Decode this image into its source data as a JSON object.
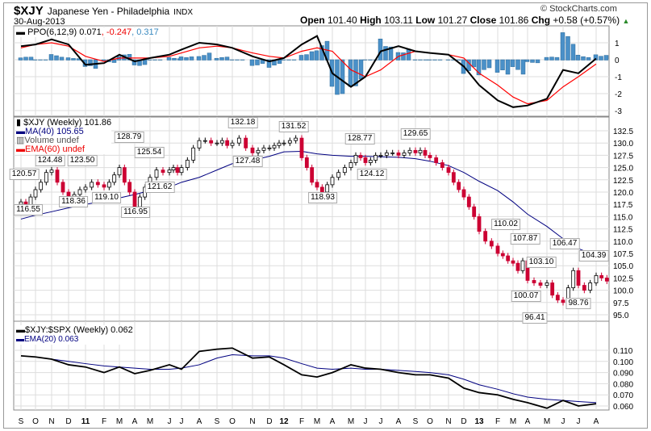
{
  "header": {
    "symbol": "$XJY",
    "name": "Japanese Yen - Philadelphia",
    "exchange": "INDX",
    "date": "30-Aug-2013",
    "copyright": "© StockCharts.com",
    "open_label": "Open",
    "open": "101.40",
    "high_label": "High",
    "high": "103.11",
    "low_label": "Low",
    "low": "101.27",
    "close_label": "Close",
    "close": "101.86",
    "chg_label": "Chg",
    "chg": "+0.58 (+0.57%)"
  },
  "ppo_legend": {
    "name": "PPO(6,12,9)",
    "ppo": "0.071",
    "signal": ", -0.247",
    "hist": ", 0.317"
  },
  "price_legend": {
    "name": "$XJY (Weekly) 101.86",
    "ma": "MA(40) 105.65",
    "volume": "Volume undef",
    "ema": "EMA(60) undef"
  },
  "ratio_legend": {
    "name": "$XJY:$SPX (Weekly) 0.062",
    "ema": "EMA(20) 0.063"
  },
  "colors": {
    "up": "#000000",
    "down": "#cc0033",
    "ma": "#000080",
    "ema": "#ff0000",
    "hist": "#4a90c8",
    "signal": "#ff0000"
  },
  "annotations": [
    "120.57",
    "116.55",
    "124.48",
    "118.36",
    "123.50",
    "119.10",
    "128.79",
    "116.95",
    "125.54",
    "121.62",
    "132.18",
    "127.48",
    "131.52",
    "118.93",
    "128.77",
    "124.12",
    "129.65",
    "110.02",
    "107.87",
    "103.10",
    "100.07",
    "96.41",
    "106.47",
    "98.76",
    "104.39"
  ],
  "chart_data": {
    "type": "candlestick",
    "x_ticks": [
      "S",
      "O",
      "N",
      "D",
      "11",
      "F",
      "M",
      "A",
      "M",
      "J",
      "J",
      "A",
      "S",
      "O",
      "N",
      "D",
      "12",
      "F",
      "M",
      "A",
      "M",
      "J",
      "J",
      "A",
      "S",
      "O",
      "N",
      "D",
      "13",
      "F",
      "M",
      "A",
      "M",
      "J",
      "J",
      "A"
    ],
    "price_ticks": [
      "132.5",
      "130.0",
      "127.5",
      "125.0",
      "122.5",
      "120.0",
      "117.5",
      "115.0",
      "112.5",
      "110.0",
      "107.5",
      "105.0",
      "102.5",
      "100.0",
      "97.5",
      "95.0"
    ],
    "ppo_ticks": [
      "1",
      "0",
      "-1",
      "-2",
      "-3"
    ],
    "ratio_ticks": [
      "0.110",
      "0.100",
      "0.090",
      "0.080",
      "0.070",
      "0.060"
    ],
    "price_closes": [
      118,
      117,
      119,
      120.5,
      122,
      124,
      124.5,
      122,
      120,
      119,
      119.5,
      120.5,
      121,
      122,
      121.5,
      121,
      122,
      123.5,
      125,
      122,
      120,
      117,
      119,
      121,
      123,
      124.5,
      124,
      124.5,
      125,
      124,
      125,
      126.5,
      129,
      130.5,
      130.5,
      130,
      130,
      130.5,
      129.5,
      130,
      131,
      129,
      128,
      128.5,
      129,
      129,
      129.5,
      130,
      130,
      130.5,
      131,
      127,
      125,
      122,
      121,
      120,
      121.5,
      123,
      124,
      125,
      126,
      127.5,
      127,
      126,
      126.5,
      127.5,
      127.5,
      128,
      128,
      127.5,
      128,
      128.5,
      128,
      128.5,
      127.5,
      127,
      126,
      125,
      124,
      122,
      120.5,
      119,
      117,
      115,
      112,
      110,
      109,
      107.5,
      107,
      106,
      105.5,
      104,
      106,
      102,
      101.5,
      101,
      101.5,
      99,
      98,
      97.5,
      100.5,
      104,
      101,
      100,
      101.5,
      103,
      102.5,
      101.86
    ],
    "ma40": [
      114.5,
      115.3,
      116,
      116.8,
      117.5,
      118.2,
      118.8,
      119.5,
      120.3,
      121,
      122,
      123,
      124.5,
      125.8,
      126.5,
      127.3,
      128.2,
      128.3,
      127.8,
      127.5,
      127.3,
      127.3,
      127.2,
      127.1,
      126.8,
      126.3,
      125.4,
      124,
      122.2,
      120.3,
      118,
      115.5,
      113,
      110.5,
      108.5,
      107
    ],
    "ppo": [
      0.8,
      0.9,
      1.2,
      0.9,
      -0.3,
      -0.2,
      0.3,
      -0.1,
      0.1,
      0.3,
      0.6,
      1.0,
      0.9,
      0.7,
      0.2,
      -0.1,
      0.1,
      0.9,
      1.4,
      -0.8,
      -1.6,
      -1.0,
      0.5,
      0.8,
      0.5,
      0.4,
      0.3,
      -0.4,
      -1.5,
      -2.4,
      -2.8,
      -2.7,
      -2.3,
      -0.6,
      -0.8,
      0.07
    ],
    "ppo_signal": [
      0.7,
      0.9,
      1.0,
      0.8,
      0.2,
      -0.1,
      0.1,
      0.1,
      0.1,
      0.2,
      0.4,
      0.7,
      0.8,
      0.7,
      0.4,
      0.2,
      0.1,
      0.5,
      0.7,
      0.5,
      -0.6,
      -1.0,
      -0.6,
      0.2,
      0.5,
      0.4,
      0.3,
      0.1,
      -0.8,
      -1.5,
      -2.2,
      -2.6,
      -2.4,
      -1.6,
      -1.0,
      -0.25
    ],
    "ratio": [
      0.105,
      0.104,
      0.102,
      0.097,
      0.095,
      0.09,
      0.095,
      0.089,
      0.092,
      0.097,
      0.093,
      0.109,
      0.111,
      0.112,
      0.103,
      0.104,
      0.097,
      0.088,
      0.086,
      0.09,
      0.097,
      0.094,
      0.093,
      0.09,
      0.088,
      0.088,
      0.085,
      0.076,
      0.072,
      0.07,
      0.066,
      0.063,
      0.058,
      0.065,
      0.06,
      0.062
    ],
    "ratio_ema20": [
      0.105,
      0.104,
      0.102,
      0.1,
      0.098,
      0.096,
      0.095,
      0.094,
      0.093,
      0.093,
      0.094,
      0.097,
      0.103,
      0.106,
      0.105,
      0.105,
      0.103,
      0.098,
      0.094,
      0.093,
      0.094,
      0.093,
      0.093,
      0.092,
      0.091,
      0.09,
      0.088,
      0.084,
      0.079,
      0.075,
      0.071,
      0.068,
      0.066,
      0.065,
      0.064,
      0.063
    ]
  }
}
